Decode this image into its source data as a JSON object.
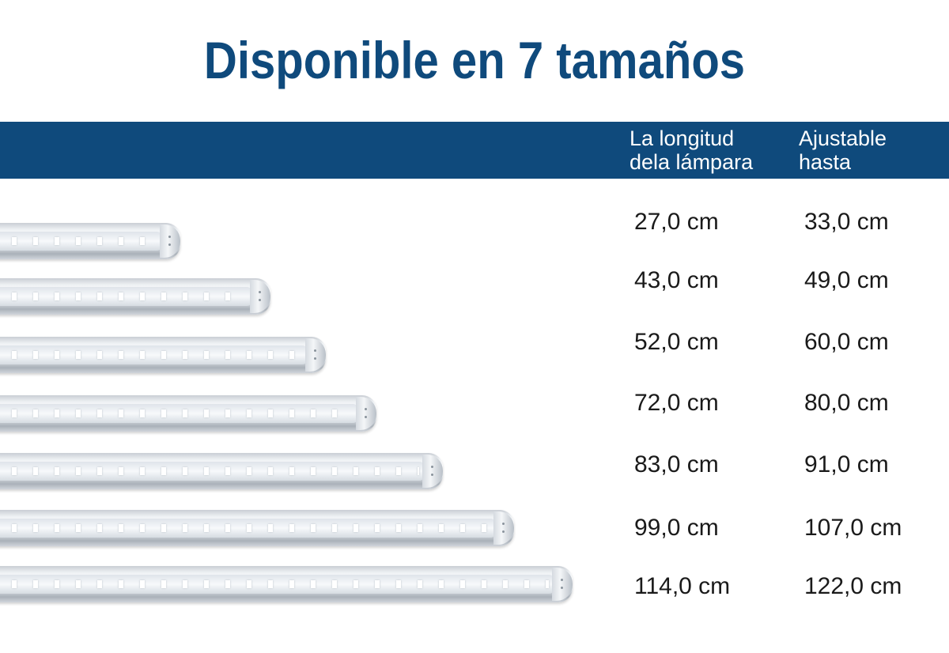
{
  "title": "Disponible en 7 tamaños",
  "columns": {
    "length_line1": "La longitud",
    "length_line2": "dela lámpara",
    "adjustable_line1": "Ajustable",
    "adjustable_line2": "hasta"
  },
  "rows": [
    {
      "length": "27,0 cm",
      "adjustable": "33,0 cm"
    },
    {
      "length": "43,0 cm",
      "adjustable": "49,0 cm"
    },
    {
      "length": "52,0 cm",
      "adjustable": "60,0 cm"
    },
    {
      "length": "72,0 cm",
      "adjustable": "80,0 cm"
    },
    {
      "length": "83,0 cm",
      "adjustable": "91,0 cm"
    },
    {
      "length": "99,0 cm",
      "adjustable": "107,0 cm"
    },
    {
      "length": "114,0 cm",
      "adjustable": "122,0 cm"
    }
  ],
  "colors": {
    "brand": "#0f4a7c",
    "header_text": "#ffffff",
    "body_text": "#1a1a1a"
  }
}
